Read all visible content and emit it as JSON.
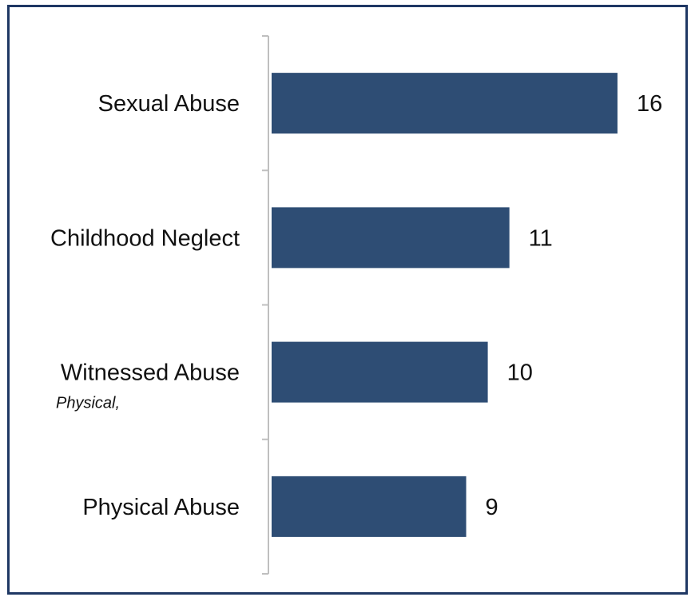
{
  "chart_data": {
    "type": "bar",
    "orientation": "horizontal",
    "categories": [
      "Sexual Abuse",
      "Childhood Neglect",
      "Witnessed Abuse",
      "Physical Abuse"
    ],
    "category_notes": [
      "",
      "",
      "Physical,",
      ""
    ],
    "values": [
      16,
      11,
      10,
      9
    ],
    "data_labels": [
      "16",
      "11",
      "10",
      "9"
    ],
    "bar_color": "#2e4d74",
    "frame_color": "#1f3864",
    "xlim": [
      0,
      16
    ],
    "grid": false,
    "legend": "none"
  }
}
